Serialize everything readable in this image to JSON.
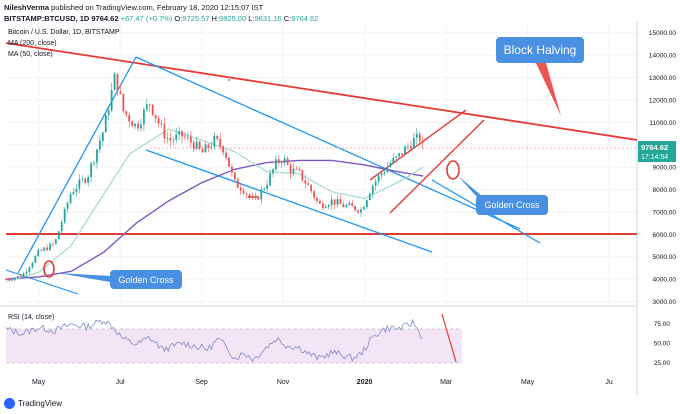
{
  "header": {
    "author": "NileshVerma",
    "published_text": "published on TradingView.com, February 18, 2020 12:15:07 IST",
    "symbol": "BITSTAMP:BTCUSD, 1D",
    "price": "9764.62",
    "change": "+67.47 (+0.7%)",
    "o_label": "O:",
    "o_value": "9725.57",
    "h_label": "H:",
    "h_value": "9825.00",
    "l_label": "L:",
    "l_value": "9631.16",
    "c_label": "C:",
    "c_value": "9764.62"
  },
  "legend": {
    "title": "Bitcoin / U.S. Dollar, 1D, BITSTAMP",
    "ma200": "MA (200, close)",
    "ma50": "MA (50, close)"
  },
  "price_badge": {
    "price": "9764.62",
    "countdown": "17:14:54"
  },
  "annotations": {
    "block_halving": "Block Halving",
    "golden_cross_1": "Golden Cross",
    "golden_cross_2": "Golden Cross"
  },
  "rsi": {
    "label": "RSI (14, close)",
    "ticks": [
      "75.00",
      "50.00",
      "25.00"
    ]
  },
  "footer": {
    "logo_text": "TradingView"
  },
  "colors": {
    "candle_up": "#26a69a",
    "candle_down": "#ef5350",
    "ma200": "#7e57c2",
    "ma50": "#a6d8d2",
    "trend_blue": "#2196f3",
    "trend_red": "#e53935",
    "callout_blue": "#4a90e2",
    "rsi_line": "#7e8ac7",
    "rsi_band": "#f3e5f5"
  },
  "chart_data": [
    {
      "type": "candlestick",
      "title": "Bitcoin / U.S. Dollar, 1D, BITSTAMP",
      "x_ticks": [
        "May",
        "Jul",
        "Sep",
        "Nov",
        "2020",
        "Mar",
        "May",
        "Ju"
      ],
      "y_ticks": [
        3000,
        4000,
        5000,
        6000,
        7000,
        8000,
        9000,
        10000,
        11000,
        12000,
        13000,
        14000,
        15000
      ],
      "y_tick_labels": [
        "3000.00",
        "4000.00",
        "5000.00",
        "6000.00",
        "7000.00",
        "8000.00",
        "9000.00",
        "10000.00",
        "11000.00",
        "12000.00",
        "13000.00",
        "14000.00",
        "15000.00"
      ],
      "ylim": [
        2800,
        15300
      ],
      "series": [
        {
          "name": "BTCUSD",
          "close_months": [
            [
              0,
              4000
            ],
            [
              0.5,
              4150
            ],
            [
              1,
              5200
            ],
            [
              1.5,
              5600
            ],
            [
              2,
              7900
            ],
            [
              2.5,
              8600
            ],
            [
              3,
              10700
            ],
            [
              3.35,
              13100
            ],
            [
              3.6,
              11500
            ],
            [
              4,
              10800
            ],
            [
              4.4,
              11900
            ],
            [
              4.8,
              10600
            ],
            [
              5,
              10200
            ],
            [
              5.4,
              10400
            ],
            [
              5.8,
              10000
            ],
            [
              6,
              9600
            ],
            [
              6.4,
              10200
            ],
            [
              6.7,
              9800
            ],
            [
              7,
              8300
            ],
            [
              7.3,
              8000
            ],
            [
              7.6,
              7400
            ],
            [
              8,
              8300
            ],
            [
              8.3,
              9200
            ],
            [
              8.5,
              9400
            ],
            [
              8.7,
              8900
            ],
            [
              9,
              8700
            ],
            [
              9.3,
              8100
            ],
            [
              9.6,
              7300
            ],
            [
              10,
              7500
            ],
            [
              10.3,
              7300
            ],
            [
              10.6,
              7200
            ],
            [
              10.9,
              7100
            ],
            [
              11.2,
              8100
            ],
            [
              11.5,
              8700
            ],
            [
              11.8,
              9200
            ],
            [
              12,
              9400
            ],
            [
              12.3,
              9900
            ],
            [
              12.5,
              10200
            ],
            [
              12.7,
              10300
            ],
            [
              12.8,
              9764.62
            ]
          ]
        },
        {
          "name": "MA (200, close)",
          "points_months": [
            [
              0,
              4000
            ],
            [
              1,
              4100
            ],
            [
              2,
              4350
            ],
            [
              3,
              5200
            ],
            [
              4,
              6500
            ],
            [
              5,
              7500
            ],
            [
              6,
              8300
            ],
            [
              7,
              8900
            ],
            [
              8,
              9200
            ],
            [
              9,
              9300
            ],
            [
              10,
              9300
            ],
            [
              11,
              9100
            ],
            [
              12,
              8800
            ],
            [
              12.8,
              8600
            ]
          ]
        },
        {
          "name": "MA (50, close)",
          "points_months": [
            [
              0,
              3900
            ],
            [
              1,
              4300
            ],
            [
              2,
              5500
            ],
            [
              3,
              7800
            ],
            [
              3.8,
              9600
            ],
            [
              5,
              10700
            ],
            [
              6,
              10200
            ],
            [
              7,
              9700
            ],
            [
              8,
              8800
            ],
            [
              9,
              8700
            ],
            [
              10,
              7900
            ],
            [
              11,
              7600
            ],
            [
              12,
              8300
            ],
            [
              12.8,
              9000
            ]
          ]
        }
      ]
    },
    {
      "type": "line",
      "title": "RSI (14, close)",
      "y_ticks": [
        25,
        50,
        75
      ],
      "ylim": [
        10,
        90
      ],
      "series": [
        {
          "name": "RSI (14, close)",
          "points_months": [
            [
              0,
              68
            ],
            [
              0.5,
              62
            ],
            [
              1,
              70
            ],
            [
              1.5,
              66
            ],
            [
              2,
              74
            ],
            [
              2.5,
              71
            ],
            [
              3,
              80
            ],
            [
              3.3,
              70
            ],
            [
              3.6,
              55
            ],
            [
              4,
              48
            ],
            [
              4.4,
              57
            ],
            [
              4.8,
              42
            ],
            [
              5,
              44
            ],
            [
              5.4,
              50
            ],
            [
              5.8,
              46
            ],
            [
              6.2,
              42
            ],
            [
              6.5,
              55
            ],
            [
              6.8,
              44
            ],
            [
              7,
              30
            ],
            [
              7.3,
              37
            ],
            [
              7.6,
              29
            ],
            [
              8,
              45
            ],
            [
              8.3,
              56
            ],
            [
              8.6,
              47
            ],
            [
              9,
              44
            ],
            [
              9.3,
              36
            ],
            [
              9.6,
              30
            ],
            [
              10,
              38
            ],
            [
              10.3,
              35
            ],
            [
              10.6,
              30
            ],
            [
              10.9,
              36
            ],
            [
              11.2,
              55
            ],
            [
              11.5,
              66
            ],
            [
              11.8,
              70
            ],
            [
              12,
              68
            ],
            [
              12.3,
              72
            ],
            [
              12.5,
              77
            ],
            [
              12.7,
              62
            ],
            [
              12.8,
              54
            ]
          ]
        }
      ]
    }
  ]
}
